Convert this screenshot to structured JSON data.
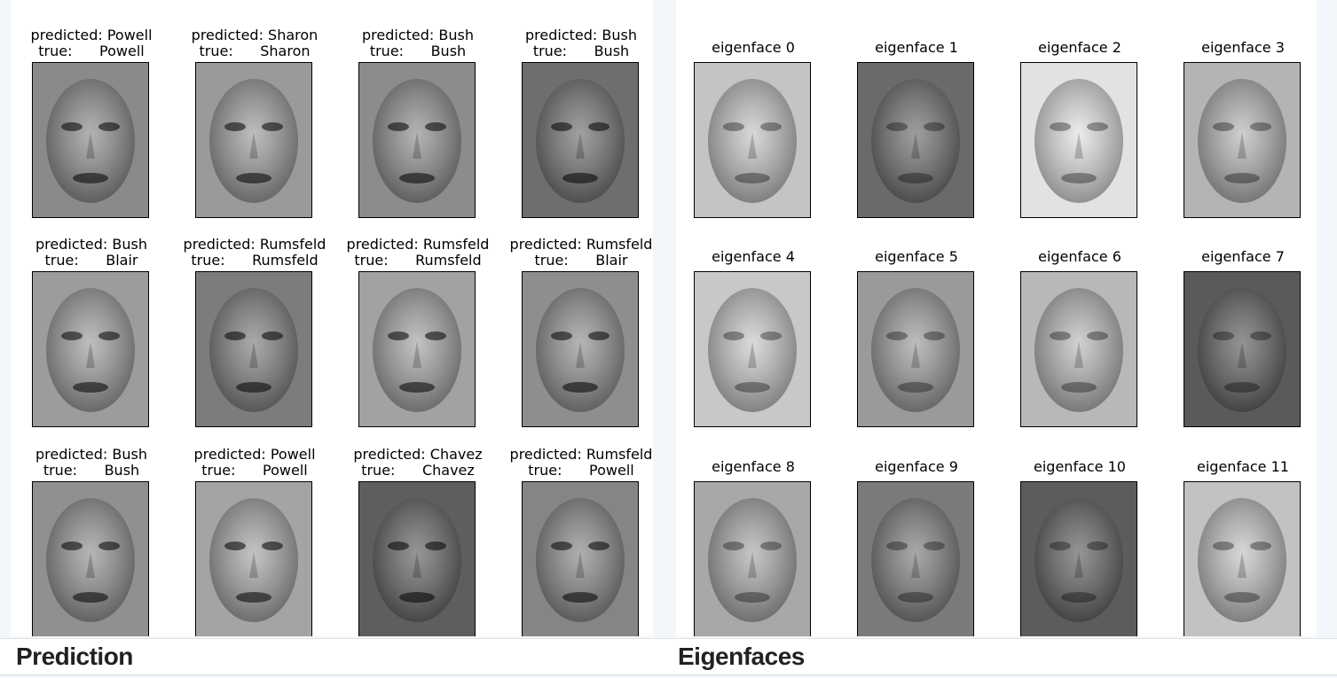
{
  "prediction": {
    "title": "Prediction",
    "items": [
      {
        "predicted": "predicted: Powell",
        "true": "true:      Powell",
        "tone": "#8a8a8a"
      },
      {
        "predicted": "predicted: Sharon",
        "true": "true:      Sharon",
        "tone": "#9a9a9a"
      },
      {
        "predicted": "predicted: Bush",
        "true": "true:      Bush",
        "tone": "#8c8c8c"
      },
      {
        "predicted": "predicted: Bush",
        "true": "true:      Bush",
        "tone": "#6e6e6e"
      },
      {
        "predicted": "predicted: Bush",
        "true": "true:      Blair",
        "tone": "#9c9c9c"
      },
      {
        "predicted": "predicted: Rumsfeld",
        "true": "true:      Rumsfeld",
        "tone": "#7c7c7c"
      },
      {
        "predicted": "predicted: Rumsfeld",
        "true": "true:      Rumsfeld",
        "tone": "#a2a2a2"
      },
      {
        "predicted": "predicted: Rumsfeld",
        "true": "true:      Blair",
        "tone": "#8e8e8e"
      },
      {
        "predicted": "predicted: Bush",
        "true": "true:      Bush",
        "tone": "#909090"
      },
      {
        "predicted": "predicted: Powell",
        "true": "true:      Powell",
        "tone": "#a4a4a4"
      },
      {
        "predicted": "predicted: Chavez",
        "true": "true:      Chavez",
        "tone": "#5e5e5e"
      },
      {
        "predicted": "predicted: Rumsfeld",
        "true": "true:      Powell",
        "tone": "#858585"
      }
    ]
  },
  "eigenfaces": {
    "title": "Eigenfaces",
    "items": [
      {
        "label": "eigenface 0",
        "tone": "#c4c4c4"
      },
      {
        "label": "eigenface 1",
        "tone": "#6a6a6a"
      },
      {
        "label": "eigenface 2",
        "tone": "#e2e2e2"
      },
      {
        "label": "eigenface 3",
        "tone": "#b4b4b4"
      },
      {
        "label": "eigenface 4",
        "tone": "#c8c8c8"
      },
      {
        "label": "eigenface 5",
        "tone": "#9a9a9a"
      },
      {
        "label": "eigenface 6",
        "tone": "#b8b8b8"
      },
      {
        "label": "eigenface 7",
        "tone": "#5a5a5a"
      },
      {
        "label": "eigenface 8",
        "tone": "#a8a8a8"
      },
      {
        "label": "eigenface 9",
        "tone": "#7a7a7a"
      },
      {
        "label": "eigenface 10",
        "tone": "#5c5c5c"
      },
      {
        "label": "eigenface 11",
        "tone": "#c2c2c2"
      }
    ]
  }
}
